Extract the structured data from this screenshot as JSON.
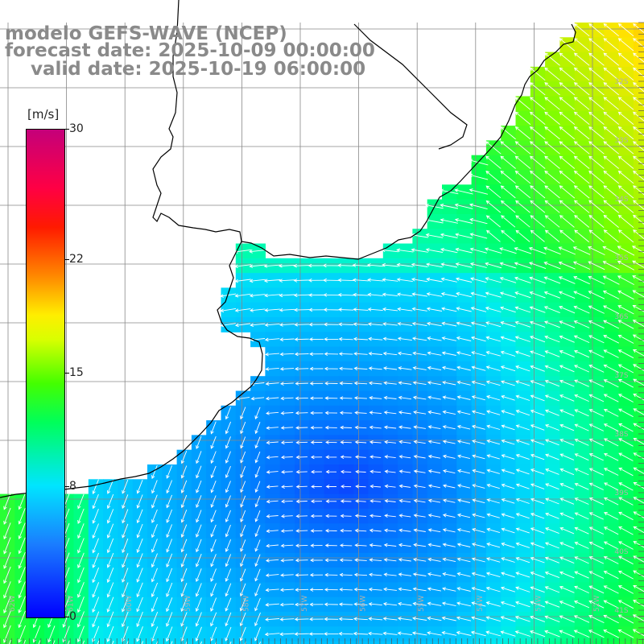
{
  "title": {
    "line1": "modelo GEFS-WAVE (NCEP)",
    "line2": "forecast date: 2025-10-09 00:00:00",
    "line3": "    valid date: 2025-10-19 06:00:00"
  },
  "colorbar": {
    "unit": "[m/s]",
    "min": 0,
    "max": 30,
    "ticks": [
      "30",
      "22",
      "15",
      "8",
      "0"
    ],
    "tick_values": [
      30,
      22,
      15,
      8,
      0
    ]
  },
  "map": {
    "lat_labels": [
      "32S",
      "33S",
      "34S",
      "35S",
      "36S",
      "37S",
      "38S",
      "39S",
      "40S",
      "41S"
    ],
    "lon_labels": [
      "62W",
      "61W",
      "60W",
      "59W",
      "58W",
      "57W",
      "56W",
      "55W",
      "54W",
      "53W",
      "52W",
      "51W"
    ],
    "colors": {
      "land": "#ffffff",
      "grid": "#888888",
      "coast": "#000000",
      "arrow": "#ffffff",
      "label": "#b0b0b0"
    },
    "wind_direction": "mostly westward (easterly winds), south-westward near the southwest coast"
  }
}
